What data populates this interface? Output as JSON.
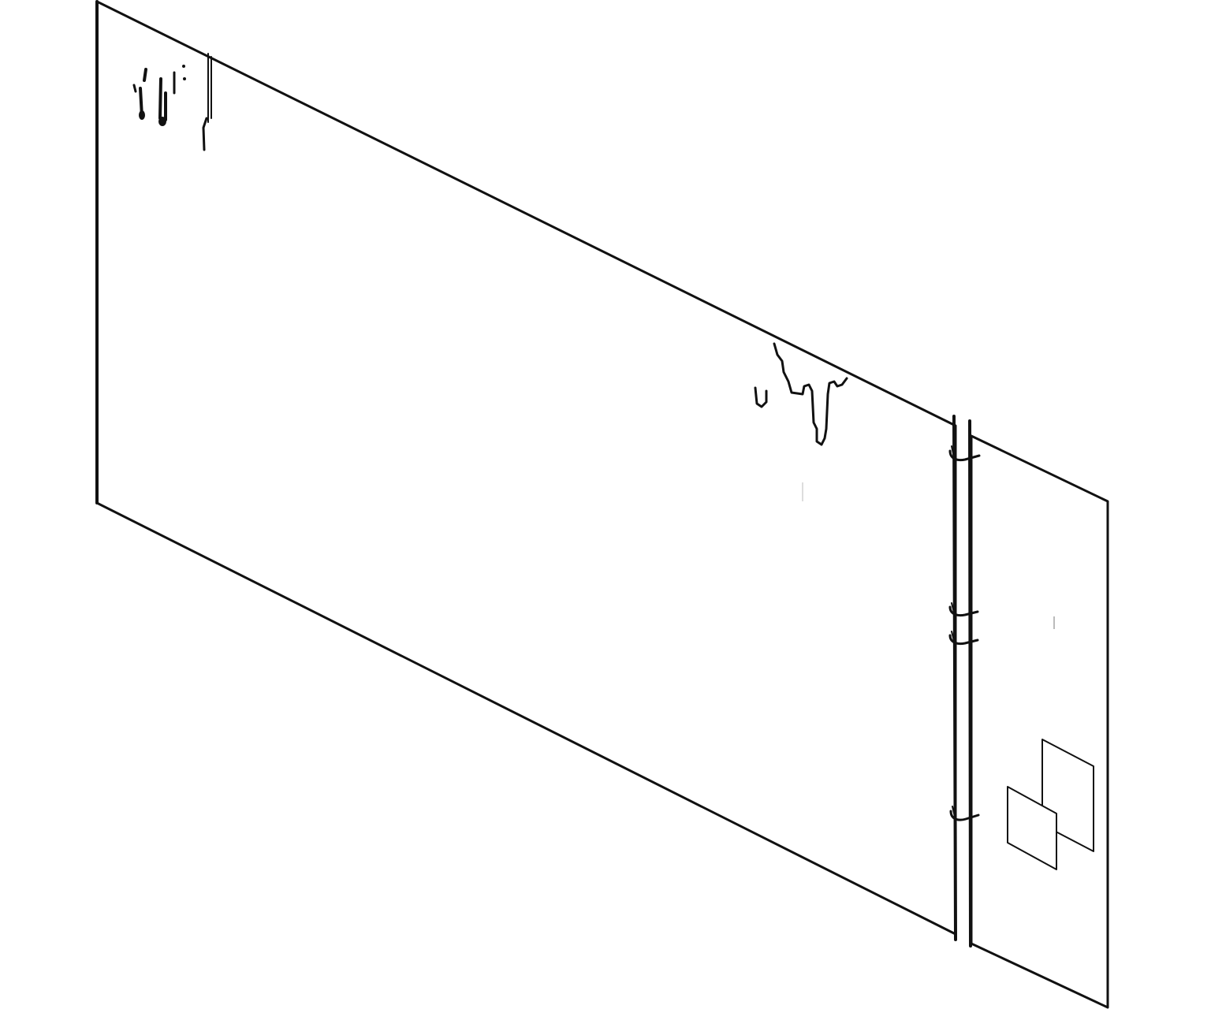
{
  "scene": {
    "subject": "isometric-wall-sketch",
    "colors": {
      "background": "#ffffff",
      "ink": "#111111"
    }
  }
}
